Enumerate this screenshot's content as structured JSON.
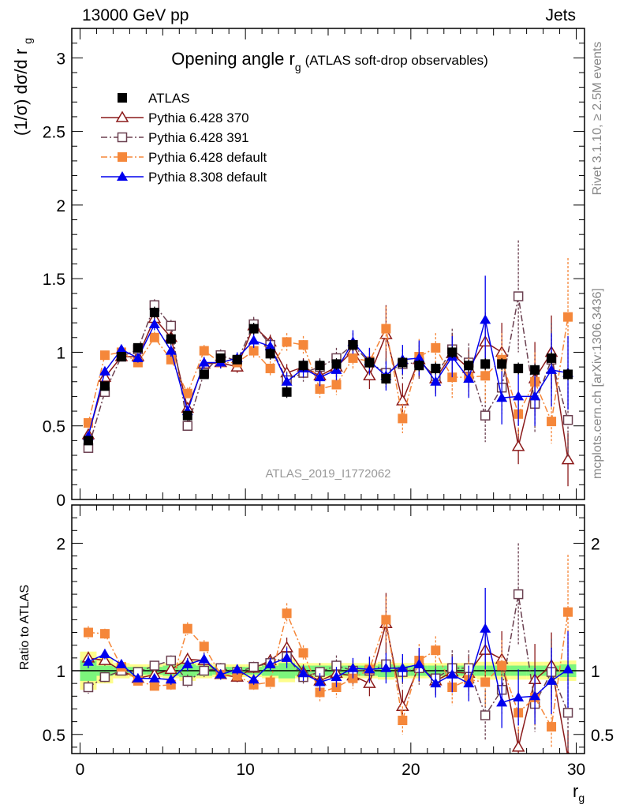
{
  "header": {
    "left_label": "13000 GeV pp",
    "right_label": "Jets"
  },
  "side_labels": {
    "rivet": "Rivet 3.1.10, ≥ 2.5M events",
    "mcplots": "mcplots.cern.ch [arXiv:1306.3436]"
  },
  "chart_data": [
    {
      "type": "scatter",
      "title": "Opening angle r",
      "title_sub": "g",
      "title_note": "(ATLAS soft-drop observables)",
      "ylabel": "(1/σ) dσ/d r",
      "ylabel_sub": "g",
      "watermark": "ATLAS_2019_I1772062",
      "xlim": [
        -0.5,
        30.5
      ],
      "ylim": [
        0,
        3.2
      ],
      "y_ticks": [
        0,
        0.5,
        1,
        1.5,
        2,
        2.5,
        3
      ],
      "y_tick_labels": [
        "0",
        "0.5",
        "1",
        "1.5",
        "2",
        "2.5",
        "3"
      ],
      "legend_position": "top-left",
      "series": [
        {
          "name": "ATLAS",
          "color": "#000000",
          "marker": "filled-square",
          "line": "none",
          "x": [
            0.5,
            1.5,
            2.5,
            3.5,
            4.5,
            5.5,
            6.5,
            7.5,
            8.5,
            9.5,
            10.5,
            11.5,
            12.5,
            13.5,
            14.5,
            15.5,
            16.5,
            17.5,
            18.5,
            19.5,
            20.5,
            21.5,
            22.5,
            23.5,
            24.5,
            25.5,
            26.5,
            27.5,
            28.5,
            29.5
          ],
          "y": [
            0.4,
            0.77,
            0.97,
            1.03,
            1.27,
            1.09,
            0.57,
            0.85,
            0.96,
            0.95,
            1.16,
            0.99,
            0.73,
            0.91,
            0.91,
            0.92,
            1.05,
            0.93,
            0.82,
            0.93,
            0.91,
            0.89,
            1.0,
            0.91,
            0.92,
            0.92,
            0.89,
            0.88,
            0.96,
            0.85
          ],
          "err": [
            0.03,
            0.03,
            0.03,
            0.03,
            0.04,
            0.04,
            0.03,
            0.03,
            0.03,
            0.03,
            0.04,
            0.04,
            0.04,
            0.04,
            0.04,
            0.04,
            0.04,
            0.04,
            0.04,
            0.04,
            0.04,
            0.04,
            0.04,
            0.04,
            0.04,
            0.04,
            0.04,
            0.04,
            0.04,
            0.04
          ]
        },
        {
          "name": "Pythia 6.428 370",
          "color": "#8b1a1a",
          "marker": "open-triangle",
          "line": "solid",
          "x": [
            0.5,
            1.5,
            2.5,
            3.5,
            4.5,
            5.5,
            6.5,
            7.5,
            8.5,
            9.5,
            10.5,
            11.5,
            12.5,
            13.5,
            14.5,
            15.5,
            16.5,
            17.5,
            18.5,
            19.5,
            20.5,
            21.5,
            22.5,
            23.5,
            24.5,
            25.5,
            26.5,
            27.5,
            28.5,
            29.5
          ],
          "y": [
            0.44,
            0.83,
            0.97,
            0.97,
            1.23,
            1.1,
            0.62,
            0.92,
            0.93,
            0.9,
            1.18,
            1.07,
            0.86,
            0.9,
            0.84,
            0.9,
            1.01,
            0.84,
            1.12,
            0.67,
            0.95,
            0.82,
            0.99,
            0.89,
            1.07,
            1.0,
            0.36,
            0.82,
            1.0,
            0.27
          ],
          "err": [
            0.03,
            0.03,
            0.03,
            0.03,
            0.04,
            0.04,
            0.04,
            0.04,
            0.04,
            0.04,
            0.05,
            0.05,
            0.06,
            0.06,
            0.06,
            0.07,
            0.08,
            0.09,
            0.2,
            0.12,
            0.12,
            0.1,
            0.14,
            0.13,
            0.2,
            0.2,
            0.12,
            0.25,
            0.25,
            0.18
          ]
        },
        {
          "name": "Pythia 6.428 391",
          "color": "#6b4050",
          "marker": "open-square",
          "line": "dashdot",
          "x": [
            0.5,
            1.5,
            2.5,
            3.5,
            4.5,
            5.5,
            6.5,
            7.5,
            8.5,
            9.5,
            10.5,
            11.5,
            12.5,
            13.5,
            14.5,
            15.5,
            16.5,
            17.5,
            18.5,
            19.5,
            20.5,
            21.5,
            22.5,
            23.5,
            24.5,
            25.5,
            26.5,
            27.5,
            28.5,
            29.5
          ],
          "y": [
            0.35,
            0.73,
            0.97,
            1.02,
            1.32,
            1.18,
            0.5,
            0.86,
            0.98,
            0.94,
            1.19,
            1.05,
            0.81,
            0.86,
            0.9,
            0.96,
            1.05,
            0.93,
            0.86,
            0.92,
            0.93,
            0.84,
            1.02,
            0.93,
            0.57,
            0.76,
            1.38,
            0.65,
            0.95,
            0.54
          ],
          "err": [
            0.03,
            0.03,
            0.03,
            0.03,
            0.04,
            0.04,
            0.04,
            0.04,
            0.04,
            0.04,
            0.05,
            0.05,
            0.06,
            0.06,
            0.06,
            0.07,
            0.08,
            0.09,
            0.1,
            0.1,
            0.12,
            0.1,
            0.14,
            0.13,
            0.18,
            0.18,
            0.38,
            0.2,
            0.25,
            0.25
          ]
        },
        {
          "name": "Pythia 6.428 default",
          "color": "#f5873a",
          "marker": "filled-square",
          "line": "dashdot",
          "x": [
            0.5,
            1.5,
            2.5,
            3.5,
            4.5,
            5.5,
            6.5,
            7.5,
            8.5,
            9.5,
            10.5,
            11.5,
            12.5,
            13.5,
            14.5,
            15.5,
            16.5,
            17.5,
            18.5,
            19.5,
            20.5,
            21.5,
            22.5,
            23.5,
            24.5,
            25.5,
            26.5,
            27.5,
            28.5,
            29.5
          ],
          "y": [
            0.52,
            0.98,
            1.0,
            0.93,
            1.1,
            0.95,
            0.72,
            1.01,
            0.93,
            0.93,
            1.01,
            0.89,
            1.07,
            1.05,
            0.75,
            0.78,
            0.96,
            0.94,
            1.16,
            0.55,
            0.97,
            1.03,
            0.83,
            0.83,
            0.84,
            0.95,
            0.58,
            0.8,
            0.53,
            1.24
          ],
          "err": [
            0.03,
            0.03,
            0.03,
            0.03,
            0.04,
            0.04,
            0.04,
            0.04,
            0.04,
            0.04,
            0.05,
            0.05,
            0.06,
            0.06,
            0.06,
            0.07,
            0.08,
            0.09,
            0.15,
            0.1,
            0.12,
            0.1,
            0.14,
            0.13,
            0.18,
            0.18,
            0.15,
            0.2,
            0.15,
            0.4
          ]
        },
        {
          "name": "Pythia 8.308 default",
          "color": "#0000ee",
          "marker": "filled-triangle",
          "line": "solid",
          "x": [
            0.5,
            1.5,
            2.5,
            3.5,
            4.5,
            5.5,
            6.5,
            7.5,
            8.5,
            9.5,
            10.5,
            11.5,
            12.5,
            13.5,
            14.5,
            15.5,
            16.5,
            17.5,
            18.5,
            19.5,
            20.5,
            21.5,
            22.5,
            23.5,
            24.5,
            25.5,
            26.5,
            27.5,
            28.5,
            29.5
          ],
          "y": [
            0.43,
            0.87,
            1.02,
            0.96,
            1.19,
            1.01,
            0.6,
            0.93,
            0.93,
            0.96,
            1.08,
            1.04,
            0.8,
            0.89,
            0.83,
            0.88,
            1.07,
            0.94,
            0.84,
            0.95,
            0.96,
            0.8,
            0.97,
            0.82,
            1.22,
            0.69,
            0.7,
            0.7,
            0.88,
            0.86
          ],
          "err": [
            0.03,
            0.03,
            0.03,
            0.03,
            0.04,
            0.04,
            0.04,
            0.04,
            0.04,
            0.04,
            0.05,
            0.05,
            0.06,
            0.06,
            0.06,
            0.07,
            0.08,
            0.09,
            0.1,
            0.1,
            0.12,
            0.1,
            0.14,
            0.13,
            0.3,
            0.18,
            0.2,
            0.2,
            0.25,
            0.25
          ]
        }
      ]
    },
    {
      "type": "scatter",
      "ylabel": "Ratio to ATLAS",
      "xlabel": "r",
      "xlabel_sub": "g",
      "xlim": [
        -0.5,
        30.5
      ],
      "ylim": [
        0.35,
        2.3
      ],
      "x_ticks": [
        0,
        10,
        20,
        30
      ],
      "x_tick_labels": [
        "0",
        "10",
        "20",
        "30"
      ],
      "y_ticks": [
        0.5,
        1,
        2
      ],
      "y_tick_labels": [
        "0.5",
        "1",
        "2"
      ],
      "reference_line": 1,
      "band_inner_color": "#7cf57c",
      "band_outer_color": "#fdfd8c",
      "band_inner": [
        0.08,
        0.04,
        0.03,
        0.03,
        0.03,
        0.04,
        0.05,
        0.04,
        0.03,
        0.03,
        0.03,
        0.04,
        0.06,
        0.04,
        0.04,
        0.04,
        0.04,
        0.04,
        0.05,
        0.04,
        0.04,
        0.04,
        0.04,
        0.04,
        0.04,
        0.04,
        0.04,
        0.04,
        0.04,
        0.05
      ],
      "band_outer": [
        0.15,
        0.1,
        0.06,
        0.05,
        0.05,
        0.06,
        0.08,
        0.06,
        0.05,
        0.05,
        0.05,
        0.06,
        0.09,
        0.06,
        0.06,
        0.06,
        0.06,
        0.06,
        0.07,
        0.06,
        0.06,
        0.06,
        0.06,
        0.06,
        0.07,
        0.07,
        0.07,
        0.07,
        0.07,
        0.08
      ],
      "series": [
        {
          "name": "Pythia 6.428 370",
          "color": "#8b1a1a",
          "marker": "open-triangle",
          "line": "solid",
          "x": [
            0.5,
            1.5,
            2.5,
            3.5,
            4.5,
            5.5,
            6.5,
            7.5,
            8.5,
            9.5,
            10.5,
            11.5,
            12.5,
            13.5,
            14.5,
            15.5,
            16.5,
            17.5,
            18.5,
            19.5,
            20.5,
            21.5,
            22.5,
            23.5,
            24.5,
            25.5,
            26.5,
            27.5,
            28.5,
            29.5
          ],
          "y": [
            1.1,
            1.08,
            1.0,
            0.94,
            0.97,
            1.01,
            1.09,
            1.08,
            0.97,
            0.95,
            1.02,
            1.08,
            1.18,
            0.99,
            0.92,
            0.98,
            0.96,
            0.9,
            1.37,
            0.72,
            1.04,
            0.92,
            0.99,
            0.98,
            1.16,
            1.09,
            0.4,
            0.93,
            1.04,
            0.32
          ],
          "err": [
            0.05,
            0.04,
            0.03,
            0.03,
            0.03,
            0.04,
            0.05,
            0.05,
            0.04,
            0.04,
            0.04,
            0.05,
            0.08,
            0.06,
            0.07,
            0.08,
            0.08,
            0.1,
            0.24,
            0.13,
            0.13,
            0.11,
            0.14,
            0.14,
            0.22,
            0.22,
            0.14,
            0.28,
            0.26,
            0.21
          ]
        },
        {
          "name": "Pythia 6.428 391",
          "color": "#6b4050",
          "marker": "open-square",
          "line": "dashdot",
          "x": [
            0.5,
            1.5,
            2.5,
            3.5,
            4.5,
            5.5,
            6.5,
            7.5,
            8.5,
            9.5,
            10.5,
            11.5,
            12.5,
            13.5,
            14.5,
            15.5,
            16.5,
            17.5,
            18.5,
            19.5,
            20.5,
            21.5,
            22.5,
            23.5,
            24.5,
            25.5,
            26.5,
            27.5,
            28.5,
            29.5
          ],
          "y": [
            0.87,
            0.95,
            1.0,
            0.99,
            1.04,
            1.08,
            0.92,
            1.0,
            1.02,
            0.99,
            1.03,
            1.06,
            1.11,
            0.95,
            0.99,
            1.04,
            1.0,
            1.0,
            1.05,
            0.99,
            1.02,
            0.94,
            1.02,
            1.02,
            0.65,
            0.85,
            1.6,
            0.74,
            0.99,
            0.67
          ],
          "err": [
            0.05,
            0.04,
            0.03,
            0.03,
            0.03,
            0.04,
            0.05,
            0.05,
            0.04,
            0.04,
            0.04,
            0.05,
            0.08,
            0.06,
            0.07,
            0.08,
            0.08,
            0.1,
            0.12,
            0.11,
            0.13,
            0.11,
            0.14,
            0.14,
            0.2,
            0.2,
            0.4,
            0.22,
            0.26,
            0.3
          ]
        },
        {
          "name": "Pythia 6.428 default",
          "color": "#f5873a",
          "marker": "filled-square",
          "line": "dashdot",
          "x": [
            0.5,
            1.5,
            2.5,
            3.5,
            4.5,
            5.5,
            6.5,
            7.5,
            8.5,
            9.5,
            10.5,
            11.5,
            12.5,
            13.5,
            14.5,
            15.5,
            16.5,
            17.5,
            18.5,
            19.5,
            20.5,
            21.5,
            22.5,
            23.5,
            24.5,
            25.5,
            26.5,
            27.5,
            28.5,
            29.5
          ],
          "y": [
            1.3,
            1.29,
            1.03,
            0.92,
            0.88,
            0.89,
            1.33,
            1.19,
            0.97,
            0.96,
            0.89,
            0.91,
            1.45,
            1.14,
            0.83,
            0.87,
            0.94,
            1.01,
            1.4,
            0.61,
            1.08,
            1.16,
            0.87,
            0.93,
            0.91,
            1.04,
            0.67,
            0.79,
            0.56,
            1.46
          ],
          "err": [
            0.05,
            0.04,
            0.03,
            0.03,
            0.03,
            0.04,
            0.05,
            0.05,
            0.04,
            0.04,
            0.04,
            0.05,
            0.08,
            0.06,
            0.07,
            0.08,
            0.08,
            0.1,
            0.18,
            0.11,
            0.13,
            0.11,
            0.14,
            0.14,
            0.2,
            0.2,
            0.17,
            0.22,
            0.17,
            0.45
          ]
        },
        {
          "name": "Pythia 8.308 default",
          "color": "#0000ee",
          "marker": "filled-triangle",
          "line": "solid",
          "x": [
            0.5,
            1.5,
            2.5,
            3.5,
            4.5,
            5.5,
            6.5,
            7.5,
            8.5,
            9.5,
            10.5,
            11.5,
            12.5,
            13.5,
            14.5,
            15.5,
            16.5,
            17.5,
            18.5,
            19.5,
            20.5,
            21.5,
            22.5,
            23.5,
            24.5,
            25.5,
            26.5,
            27.5,
            28.5,
            29.5
          ],
          "y": [
            1.07,
            1.13,
            1.05,
            0.94,
            0.94,
            0.93,
            1.05,
            1.09,
            0.97,
            1.01,
            0.93,
            1.05,
            1.1,
            0.98,
            0.91,
            0.95,
            1.02,
            1.01,
            1.02,
            1.02,
            1.05,
            0.9,
            0.97,
            0.9,
            1.33,
            0.75,
            0.79,
            0.8,
            0.92,
            1.01
          ],
          "err": [
            0.05,
            0.04,
            0.03,
            0.03,
            0.03,
            0.04,
            0.05,
            0.05,
            0.04,
            0.04,
            0.04,
            0.05,
            0.08,
            0.06,
            0.07,
            0.08,
            0.08,
            0.1,
            0.12,
            0.11,
            0.13,
            0.11,
            0.14,
            0.14,
            0.32,
            0.2,
            0.22,
            0.22,
            0.26,
            0.3
          ]
        }
      ]
    }
  ]
}
